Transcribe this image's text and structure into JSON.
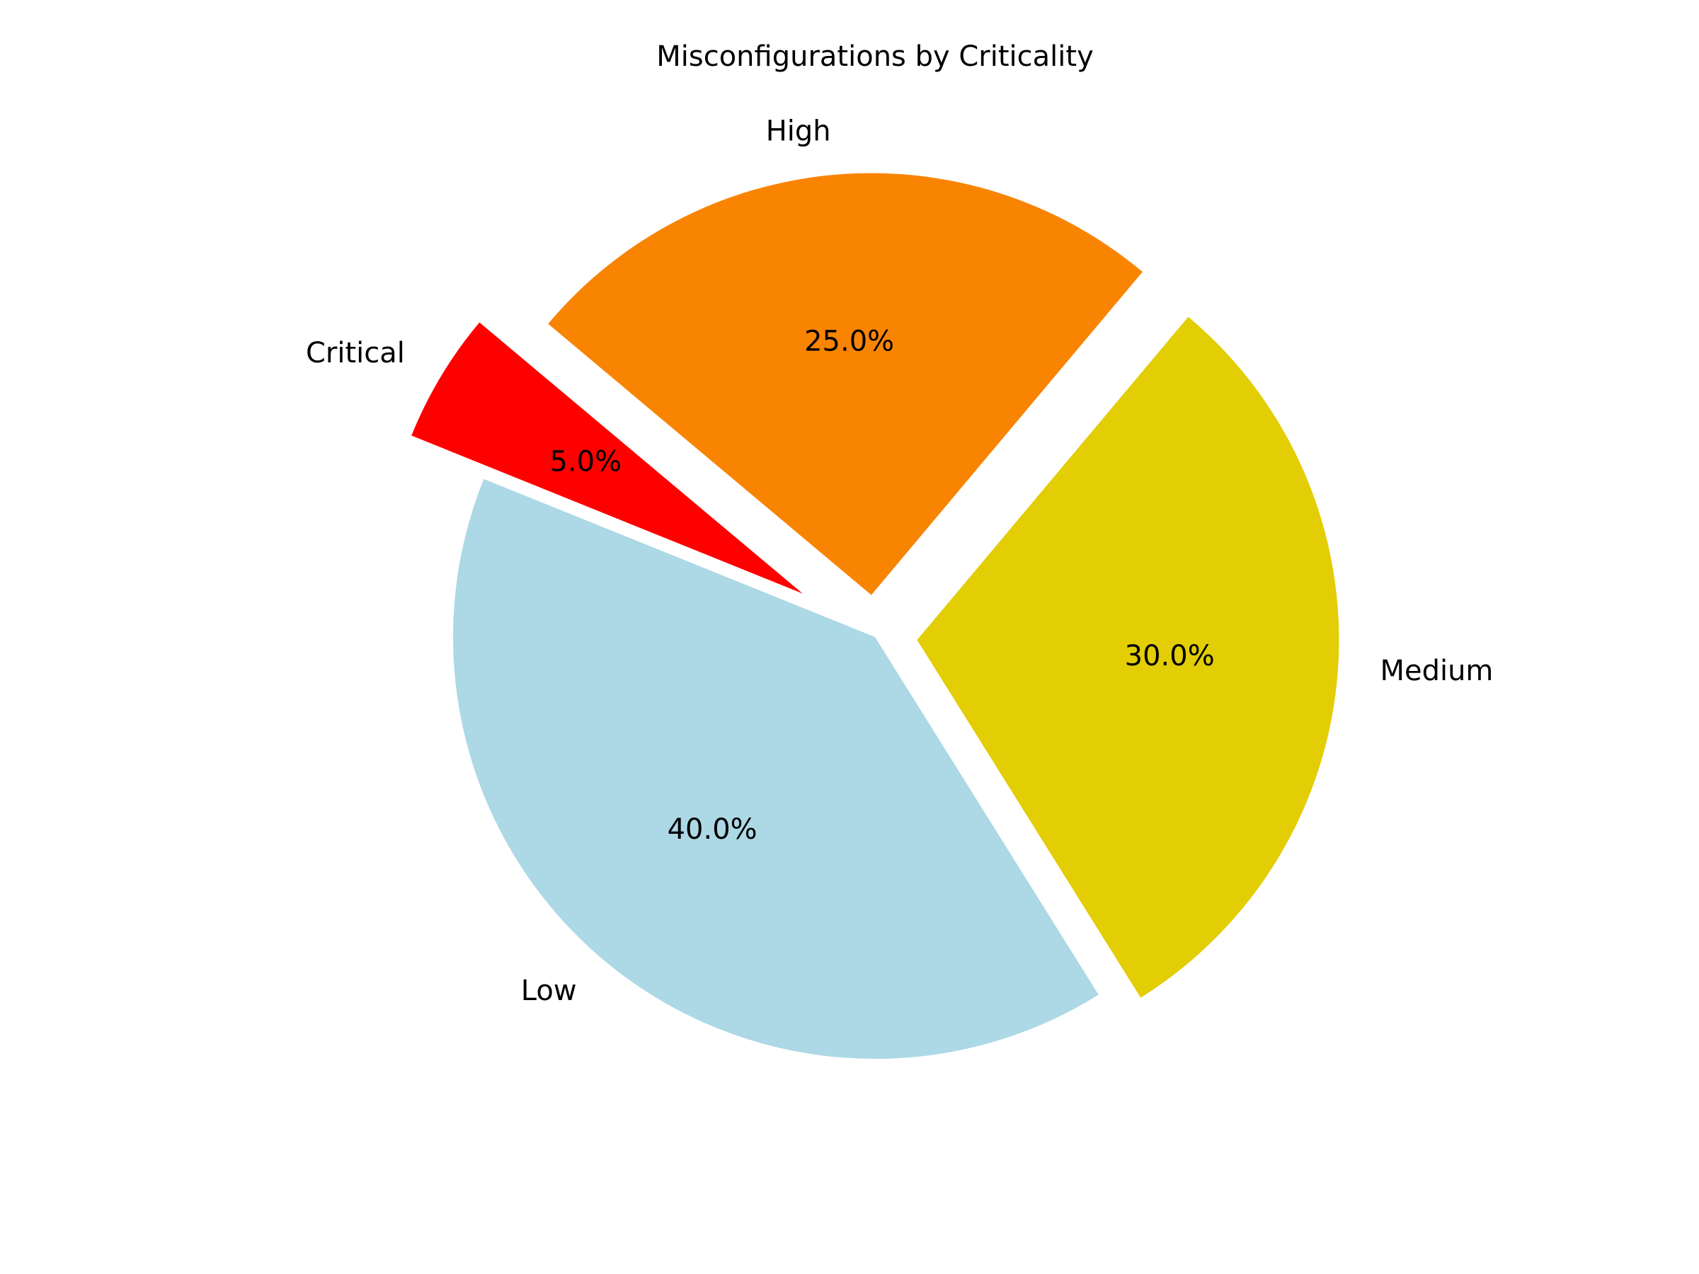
{
  "chart_data": {
    "type": "pie",
    "title": "Misconfigurations by Criticality",
    "slices": [
      {
        "label": "Critical",
        "value": 5,
        "pct_label": "5.0%",
        "color": "#ff0000",
        "explode": 0.2
      },
      {
        "label": "Low",
        "value": 40,
        "pct_label": "40.0%",
        "color": "#add8e6",
        "explode": 0
      },
      {
        "label": "Medium",
        "value": 30,
        "pct_label": "30.0%",
        "color": "#e3cd05",
        "explode": 0.1
      },
      {
        "label": "High",
        "value": 25,
        "pct_label": "25.0%",
        "color": "#f98402",
        "explode": 0.1
      }
    ],
    "start_angle_deg": 140,
    "direction": "counterclockwise",
    "legend": false
  }
}
